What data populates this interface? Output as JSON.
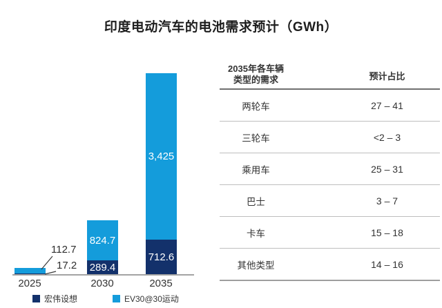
{
  "title": "印度电动汽车的电池需求预计（GWh）",
  "chart_data": {
    "type": "bar",
    "stacked": true,
    "unit": "GWh",
    "categories": [
      "2025",
      "2030",
      "2035"
    ],
    "series": [
      {
        "name": "宏伟设想",
        "color": "#13316B",
        "values": [
          17.2,
          289.4,
          712.6
        ],
        "labels": [
          "17.2",
          "289.4",
          "712.6"
        ]
      },
      {
        "name": "EV30@30运动",
        "color": "#149CDB",
        "values": [
          112.7,
          824.7,
          3425
        ],
        "labels": [
          "112.7",
          "824.7",
          "3,425"
        ]
      }
    ],
    "legend_position": "bottom-left",
    "grid": false,
    "value_axis_hidden": true
  },
  "table": {
    "col1_header": "2035年各车辆\n类型的需求",
    "col2_header": "预计占比",
    "rows": [
      {
        "type": "两轮车",
        "share": "27 – 41"
      },
      {
        "type": "三轮车",
        "share": "<2 – 3"
      },
      {
        "type": "乘用车",
        "share": "25 – 31"
      },
      {
        "type": "巴士",
        "share": "3 – 7"
      },
      {
        "type": "卡车",
        "share": "15 – 18"
      },
      {
        "type": "其他类型",
        "share": "14 – 16"
      }
    ]
  }
}
